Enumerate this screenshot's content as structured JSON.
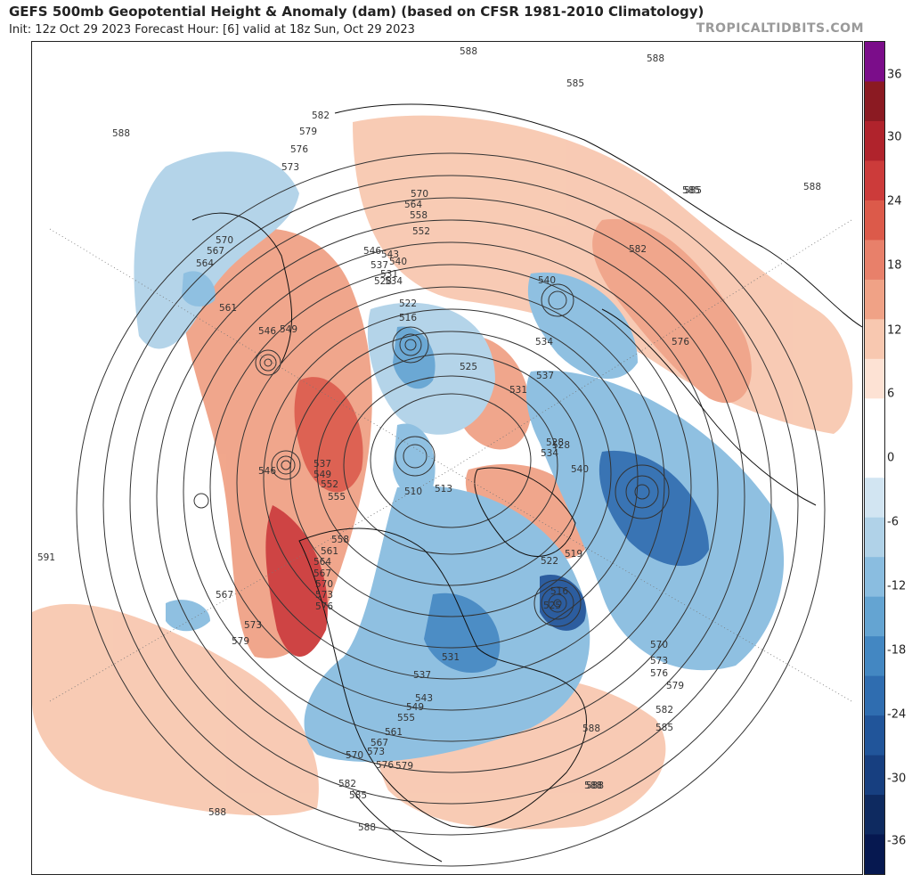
{
  "header": {
    "title": "GEFS 500mb Geopotential Height & Anomaly (dam) (based on CFSR 1981-2010 Climatology)",
    "subtitle": "Init: 12z Oct 29 2023   Forecast Hour: [6]   valid at 18z Sun, Oct 29 2023",
    "brand": "TROPICALTIDBITS.COM"
  },
  "colorbar": {
    "ticks": [
      "36",
      "30",
      "24",
      "18",
      "12",
      "6",
      "0",
      "-6",
      "-12",
      "-18",
      "-24",
      "-30",
      "-36"
    ],
    "colors": [
      "#7b0d8a",
      "#8b1a22",
      "#b0232c",
      "#cc3b3a",
      "#dc5a4a",
      "#e8806a",
      "#f0a286",
      "#f8c8b0",
      "#fde2d4",
      "#ffffff",
      "#ffffff",
      "#d2e5f2",
      "#b0d2e8",
      "#8abde0",
      "#64a4d2",
      "#4387c2",
      "#2f6db0",
      "#21559a",
      "#173f80",
      "#0e2a60",
      "#061850"
    ]
  },
  "contour_labels": [
    "588",
    "588",
    "588",
    "588",
    "585",
    "585",
    "582",
    "582",
    "579",
    "576",
    "573",
    "570",
    "567",
    "564",
    "561",
    "558",
    "555",
    "552",
    "549",
    "546",
    "543",
    "540",
    "537",
    "534",
    "531",
    "528",
    "525",
    "522",
    "519",
    "516",
    "513",
    "510",
    "591"
  ],
  "label_groups": {
    "arctic": [
      "570",
      "564",
      "558",
      "552",
      "546",
      "543",
      "540",
      "537",
      "531",
      "534",
      "528",
      "522",
      "516",
      "525",
      "531",
      "528",
      "534",
      "540",
      "513",
      "510"
    ],
    "pacific": [
      "570",
      "567",
      "564",
      "561",
      "546",
      "549",
      "546",
      "537",
      "549",
      "552",
      "555",
      "558",
      "561",
      "564",
      "567",
      "570",
      "573",
      "576",
      "579",
      "573",
      "567"
    ],
    "atlantic": [
      "585",
      "582",
      "576",
      "540",
      "534",
      "537",
      "528",
      "519",
      "516",
      "522",
      "525",
      "570",
      "573",
      "576",
      "579",
      "582",
      "585",
      "588",
      "588"
    ],
    "america": [
      "531",
      "537",
      "543",
      "549",
      "555",
      "561",
      "567",
      "570",
      "573",
      "576",
      "579",
      "582",
      "585",
      "588"
    ]
  }
}
